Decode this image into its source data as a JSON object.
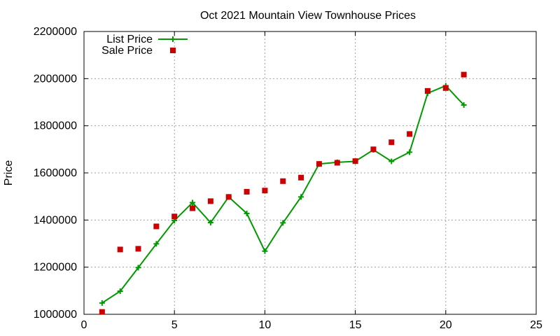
{
  "chart_data": {
    "type": "line",
    "title": "Oct 2021 Mountain View Townhouse Prices",
    "xlabel": "",
    "ylabel": "Price",
    "xlim": [
      0,
      25
    ],
    "ylim": [
      1000000,
      2200000
    ],
    "x_ticks": [
      0,
      5,
      10,
      15,
      20,
      25
    ],
    "y_ticks": [
      1000000,
      1200000,
      1400000,
      1600000,
      1800000,
      2000000,
      2200000
    ],
    "grid": true,
    "legend_position": "top-left",
    "series": [
      {
        "name": "List Price",
        "style": "linespoints",
        "marker": "plus",
        "color": "#009900",
        "x": [
          1,
          2,
          3,
          4,
          5,
          6,
          7,
          8,
          9,
          10,
          11,
          12,
          13,
          14,
          15,
          16,
          17,
          18,
          19,
          20,
          21
        ],
        "values": [
          1048000,
          1098000,
          1198000,
          1299000,
          1398000,
          1474000,
          1389000,
          1498000,
          1428000,
          1268000,
          1388000,
          1498000,
          1638000,
          1645000,
          1649000,
          1698000,
          1649000,
          1688000,
          1938000,
          1970000,
          1888000
        ]
      },
      {
        "name": "Sale Price",
        "style": "points",
        "marker": "square",
        "color": "#cc0000",
        "x": [
          1,
          2,
          3,
          4,
          5,
          6,
          7,
          8,
          9,
          10,
          11,
          12,
          13,
          14,
          15,
          16,
          17,
          18,
          19,
          20,
          21
        ],
        "values": [
          1010000,
          1275000,
          1278000,
          1373000,
          1415000,
          1450000,
          1480000,
          1498000,
          1520000,
          1525000,
          1565000,
          1580000,
          1638000,
          1643000,
          1650000,
          1700000,
          1730000,
          1765000,
          1948000,
          1960000,
          2017000
        ]
      }
    ]
  }
}
